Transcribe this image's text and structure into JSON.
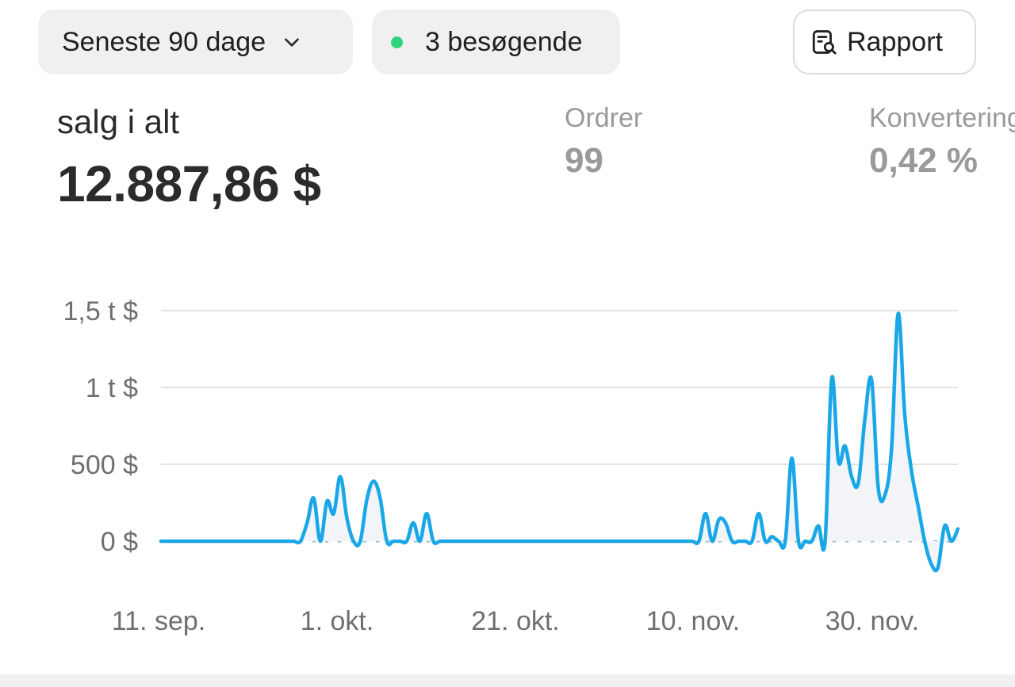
{
  "filters": {
    "range_label": "Seneste 90 dage",
    "visitors_label": "3 besøgende",
    "live_dot_color": "#2ed47a"
  },
  "report_button": {
    "label": "Rapport",
    "icon": "report-search-icon"
  },
  "summary": {
    "total_label": "salg i alt",
    "total_value": "12.887,86 $",
    "orders_label": "Ordrer",
    "orders_value": "99",
    "conversion_label": "Konvertering",
    "conversion_value": "0,42 %"
  },
  "chart_data": {
    "type": "line",
    "y_ticks": [
      {
        "label": "0 $",
        "value": 0
      },
      {
        "label": "500 $",
        "value": 500
      },
      {
        "label": "1 t $",
        "value": 1000
      },
      {
        "label": "1,5 t $",
        "value": 1500
      }
    ],
    "x_ticks": [
      "11. sep.",
      "1. okt.",
      "21. okt.",
      "10. nov.",
      "30. nov."
    ],
    "ylim": [
      -200,
      1500
    ],
    "grid": true,
    "line_color": "#1aa7e8",
    "baseline_style": "dotted",
    "series": [
      {
        "values": [
          0,
          0,
          0,
          0,
          0,
          0,
          0,
          0,
          0,
          0,
          0,
          0,
          0,
          0,
          0,
          0,
          0,
          0,
          0,
          0,
          0,
          0,
          120,
          280,
          0,
          260,
          180,
          420,
          150,
          0,
          0,
          270,
          390,
          280,
          0,
          0,
          0,
          0,
          120,
          0,
          180,
          0,
          0,
          0,
          0,
          0,
          0,
          0,
          0,
          0,
          0,
          0,
          0,
          0,
          0,
          0,
          0,
          0,
          0,
          0,
          0,
          0,
          0,
          0,
          0,
          0,
          0,
          0,
          0,
          0,
          0,
          0,
          0,
          0,
          0,
          0,
          0,
          0,
          0,
          0,
          0,
          0,
          180,
          0,
          140,
          120,
          0,
          0,
          0,
          0,
          180,
          0,
          30,
          0,
          0,
          540,
          0,
          0,
          0,
          100,
          0,
          1060,
          520,
          620,
          420,
          380,
          800,
          1050,
          350,
          300,
          600,
          1480,
          820,
          460,
          230,
          0,
          -150,
          -170,
          100,
          0,
          80
        ]
      }
    ]
  }
}
